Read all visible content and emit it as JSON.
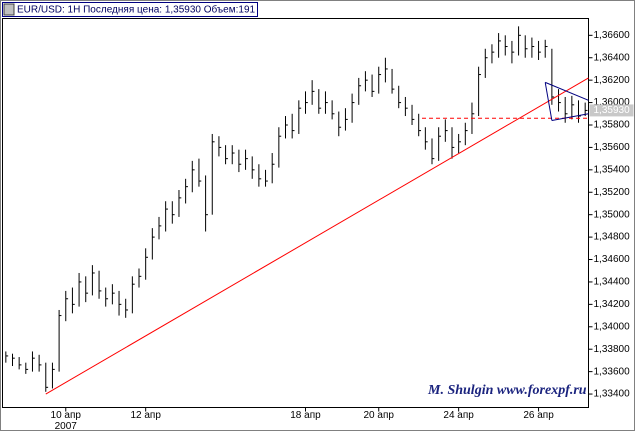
{
  "chart_data": {
    "type": "hlc",
    "title": "EUR/USD: 1H Последняя цена: 1,35930 Объем:191",
    "watermark": "M. Shulgin www.forexpf.ru",
    "year": "2007",
    "color": "#000000",
    "xlim": [
      -0.5,
      87.5
    ],
    "xticks": [
      {
        "value": 9,
        "label": "10 апр"
      },
      {
        "value": 21,
        "label": "12 апр"
      },
      {
        "value": 45,
        "label": "18 апр"
      },
      {
        "value": 56,
        "label": "20 апр"
      },
      {
        "value": 68,
        "label": "24 апр"
      },
      {
        "value": 80,
        "label": "26 апр"
      }
    ],
    "ylim": [
      1.3328,
      1.3675
    ],
    "yticks": [
      {
        "value": 1.334,
        "label": "1,33400"
      },
      {
        "value": 1.336,
        "label": "1,33600"
      },
      {
        "value": 1.338,
        "label": "1,33800"
      },
      {
        "value": 1.34,
        "label": "1,34000"
      },
      {
        "value": 1.342,
        "label": "1,34200"
      },
      {
        "value": 1.344,
        "label": "1,34400"
      },
      {
        "value": 1.346,
        "label": "1,34600"
      },
      {
        "value": 1.348,
        "label": "1,34800"
      },
      {
        "value": 1.35,
        "label": "1,35000"
      },
      {
        "value": 1.352,
        "label": "1,35200"
      },
      {
        "value": 1.354,
        "label": "1,35400"
      },
      {
        "value": 1.356,
        "label": "1,35600"
      },
      {
        "value": 1.358,
        "label": "1,35800"
      },
      {
        "value": 1.36,
        "label": "1,36000"
      },
      {
        "value": 1.362,
        "label": "1,36200"
      },
      {
        "value": 1.364,
        "label": "1,36400"
      },
      {
        "value": 1.366,
        "label": "1,36600"
      }
    ],
    "last_price": {
      "value": 1.3593,
      "label": "1,35930"
    },
    "bars": {
      "high": [
        1.3378,
        1.3376,
        1.3373,
        1.3368,
        1.3378,
        1.3375,
        1.3368,
        1.3368,
        1.3415,
        1.3432,
        1.3435,
        1.3448,
        1.3445,
        1.3455,
        1.345,
        1.3435,
        1.3438,
        1.3432,
        1.3425,
        1.3445,
        1.3452,
        1.347,
        1.3488,
        1.3498,
        1.3512,
        1.3512,
        1.3522,
        1.3532,
        1.3548,
        1.355,
        1.3535,
        1.3572,
        1.357,
        1.3562,
        1.3562,
        1.3558,
        1.3558,
        1.3552,
        1.3545,
        1.354,
        1.3555,
        1.3578,
        1.3588,
        1.359,
        1.3602,
        1.361,
        1.362,
        1.3612,
        1.361,
        1.3602,
        1.3592,
        1.3595,
        1.3608,
        1.3622,
        1.3628,
        1.3625,
        1.3632,
        1.364,
        1.363,
        1.3615,
        1.3605,
        1.3598,
        1.359,
        1.3578,
        1.3568,
        1.3578,
        1.3585,
        1.3578,
        1.3572,
        1.3582,
        1.36,
        1.3632,
        1.3648,
        1.3652,
        1.3662,
        1.366,
        1.3655,
        1.3668,
        1.366,
        1.3658,
        1.3655,
        1.3656,
        1.3648,
        1.3612,
        1.3605,
        1.3606,
        1.3602,
        1.36
      ],
      "low": [
        1.3368,
        1.3365,
        1.3362,
        1.3358,
        1.336,
        1.336,
        1.3342,
        1.3345,
        1.336,
        1.3405,
        1.3412,
        1.3418,
        1.3422,
        1.3428,
        1.3425,
        1.3418,
        1.342,
        1.341,
        1.3408,
        1.3412,
        1.3435,
        1.3442,
        1.346,
        1.3478,
        1.3485,
        1.3492,
        1.3498,
        1.351,
        1.352,
        1.3525,
        1.3485,
        1.35,
        1.3552,
        1.3545,
        1.3545,
        1.3538,
        1.354,
        1.3532,
        1.3525,
        1.3525,
        1.3528,
        1.3542,
        1.3568,
        1.3568,
        1.3572,
        1.359,
        1.3598,
        1.359,
        1.359,
        1.3585,
        1.357,
        1.3575,
        1.3582,
        1.3598,
        1.361,
        1.3605,
        1.3608,
        1.3618,
        1.3608,
        1.3595,
        1.3588,
        1.358,
        1.357,
        1.3558,
        1.3545,
        1.3548,
        1.3565,
        1.355,
        1.3555,
        1.3562,
        1.3572,
        1.3588,
        1.3622,
        1.3635,
        1.364,
        1.3642,
        1.3635,
        1.3642,
        1.364,
        1.364,
        1.3638,
        1.364,
        1.3598,
        1.3592,
        1.3582,
        1.3585,
        1.3582,
        1.3588
      ],
      "close": [
        1.3374,
        1.3372,
        1.3366,
        1.3362,
        1.3372,
        1.3366,
        1.3346,
        1.3362,
        1.341,
        1.3425,
        1.342,
        1.344,
        1.343,
        1.3448,
        1.3432,
        1.3425,
        1.343,
        1.342,
        1.3415,
        1.3438,
        1.3445,
        1.3462,
        1.348,
        1.349,
        1.3505,
        1.35,
        1.3515,
        1.3525,
        1.354,
        1.353,
        1.35,
        1.3565,
        1.356,
        1.355,
        1.3555,
        1.3545,
        1.355,
        1.354,
        1.3532,
        1.353,
        1.3545,
        1.357,
        1.358,
        1.3575,
        1.3595,
        1.36,
        1.361,
        1.3595,
        1.36,
        1.359,
        1.3578,
        1.3585,
        1.36,
        1.3615,
        1.362,
        1.361,
        1.3625,
        1.363,
        1.3612,
        1.36,
        1.3595,
        1.3585,
        1.3575,
        1.3565,
        1.355,
        1.357,
        1.3575,
        1.356,
        1.3565,
        1.3575,
        1.359,
        1.3625,
        1.364,
        1.3645,
        1.3655,
        1.365,
        1.3645,
        1.366,
        1.3648,
        1.365,
        1.3645,
        1.365,
        1.3605,
        1.36,
        1.359,
        1.3598,
        1.3588,
        1.3593
      ]
    },
    "lines": [
      {
        "x": [
          6,
          87.5
        ],
        "y": [
          1.334,
          1.3622
        ],
        "color": "#ff0000"
      },
      {
        "x": [
          62.5,
          87.5
        ],
        "y": [
          1.3586,
          1.3586
        ],
        "color": "#ff0000",
        "dash": true
      },
      {
        "x": [
          81,
          87.5
        ],
        "y": [
          1.3618,
          1.3602
        ],
        "color": "#000080"
      },
      {
        "x": [
          82,
          87.5
        ],
        "y": [
          1.3584,
          1.359
        ],
        "color": "#000080"
      },
      {
        "x": [
          81,
          82
        ],
        "y": [
          1.3618,
          1.3584
        ],
        "color": "#000080"
      }
    ]
  }
}
